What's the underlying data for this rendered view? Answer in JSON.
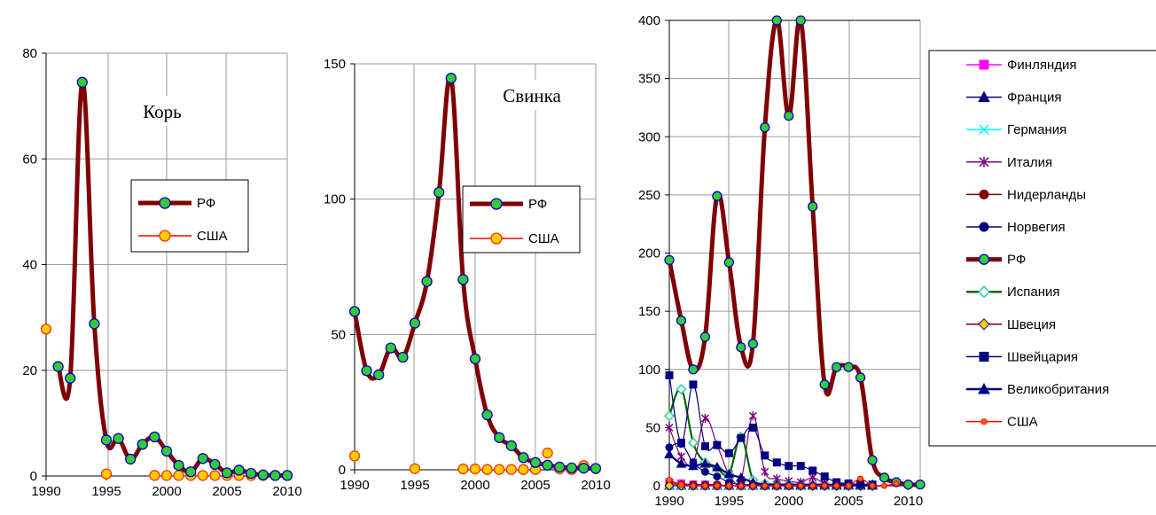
{
  "chart_data": [
    {
      "type": "line",
      "title": "Корь",
      "xlim": [
        1990,
        2010
      ],
      "ylim": [
        0,
        80
      ],
      "xticks": [
        1990,
        1995,
        2000,
        2005,
        2010
      ],
      "yticks": [
        0,
        20,
        40,
        60,
        80
      ],
      "grid": true,
      "legend_position": "center-right",
      "series": [
        {
          "name": "РФ",
          "color": "#800000",
          "marker_color": "#33cc33",
          "x": [
            1991,
            1992,
            1993,
            1994,
            1995,
            1996,
            1997,
            1998,
            1999,
            2000,
            2001,
            2002,
            2003,
            2004,
            2005,
            2006,
            2007,
            2008,
            2009,
            2010
          ],
          "y": [
            20.7,
            18.5,
            74.5,
            28.8,
            6.8,
            7.1,
            3.2,
            6.0,
            7.4,
            4.7,
            2.0,
            0.8,
            3.3,
            2.2,
            0.6,
            1.1,
            0.5,
            0.2,
            0.1,
            0.1
          ]
        },
        {
          "name": "США",
          "color": "#ff0000",
          "marker_color": "#ffcc00",
          "x": [
            1990,
            1995,
            1999,
            2000,
            2001,
            2002,
            2003,
            2004,
            2005,
            2006,
            2007,
            2008,
            2009,
            2010
          ],
          "y": [
            27.8,
            0.4,
            0.1,
            0.1,
            0.1,
            0.1,
            0.1,
            0.1,
            0.1,
            0.1,
            0.1,
            0.1,
            0.1,
            0.1
          ]
        }
      ]
    },
    {
      "type": "line",
      "title": "Свинка",
      "xlim": [
        1990,
        2010
      ],
      "ylim": [
        0,
        150
      ],
      "xticks": [
        1990,
        1995,
        2000,
        2005,
        2010
      ],
      "yticks": [
        0,
        50,
        100,
        150
      ],
      "grid": true,
      "legend_position": "center-right",
      "series": [
        {
          "name": "РФ",
          "color": "#800000",
          "marker_color": "#33cc33",
          "x": [
            1990,
            1991,
            1992,
            1993,
            1994,
            1995,
            1996,
            1997,
            1998,
            1999,
            2000,
            2001,
            2002,
            2003,
            2004,
            2005,
            2006,
            2007,
            2008,
            2009,
            2010
          ],
          "y": [
            58.5,
            36.6,
            35.1,
            45.0,
            41.6,
            54.2,
            69.6,
            102.5,
            144.7,
            70.3,
            41.0,
            20.3,
            11.9,
            8.9,
            4.5,
            2.7,
            1.7,
            1.0,
            0.7,
            0.6,
            0.5
          ]
        },
        {
          "name": "США",
          "color": "#ff0000",
          "marker_color": "#ffcc00",
          "x": [
            1990,
            1995,
            1999,
            2000,
            2001,
            2002,
            2003,
            2004,
            2005,
            2006,
            2007,
            2008,
            2009
          ],
          "y": [
            5.1,
            0.4,
            0.3,
            0.3,
            0.1,
            0.1,
            0.1,
            0.1,
            0.1,
            6.2,
            0.3,
            0.1,
            1.6
          ]
        }
      ]
    },
    {
      "type": "line",
      "title": "",
      "xlim": [
        1990,
        2011
      ],
      "ylim": [
        0,
        400
      ],
      "xticks": [
        1990,
        1995,
        2000,
        2005,
        2010
      ],
      "yticks": [
        0,
        50,
        100,
        150,
        200,
        250,
        300,
        350,
        400
      ],
      "grid": true,
      "legend_position": "right",
      "series": [
        {
          "name": "Финляндия",
          "color": "#ff00ff",
          "marker": "square",
          "x": [
            1990,
            1991,
            1992,
            1993,
            1994,
            1995,
            1996,
            1997,
            1998,
            1999,
            2000,
            2001,
            2002,
            2003,
            2004,
            2005,
            2006,
            2007
          ],
          "y": [
            3,
            2,
            1,
            1,
            0,
            0,
            0,
            0,
            0,
            0,
            0,
            0,
            0,
            0,
            0,
            0,
            0,
            0
          ]
        },
        {
          "name": "Франция",
          "color": "#000080",
          "marker": "triangle",
          "x": [
            1990,
            1991,
            1992,
            1993,
            1994,
            1995,
            1996,
            1997,
            1998,
            1999,
            2000,
            2001,
            2002,
            2003,
            2004,
            2005,
            2006,
            2007
          ],
          "y": [
            0,
            0,
            0,
            0,
            0,
            0,
            0,
            0,
            0,
            0,
            0,
            0,
            0,
            0,
            0,
            0,
            0,
            0
          ]
        },
        {
          "name": "Германия",
          "color": "#00ffff",
          "marker": "x",
          "x": [
            1990,
            1991,
            1992,
            1993,
            1994,
            1995,
            1996,
            1997,
            1998,
            1999,
            2000,
            2001,
            2002,
            2003,
            2004,
            2005,
            2006,
            2007
          ],
          "y": [
            0,
            0,
            0,
            0,
            0,
            0,
            0,
            0,
            0,
            0,
            0,
            0,
            0,
            0,
            0,
            0,
            0,
            0
          ]
        },
        {
          "name": "Италия",
          "color": "#800080",
          "marker": "star",
          "x": [
            1990,
            1991,
            1992,
            1993,
            1994,
            1995,
            1996,
            1997,
            1998,
            1999,
            2000,
            2001,
            2002,
            2003,
            2004,
            2005,
            2006,
            2007
          ],
          "y": [
            50,
            25,
            20,
            58,
            35,
            10,
            5,
            60,
            12,
            6,
            4,
            3,
            7,
            2,
            1,
            1,
            1,
            0
          ]
        },
        {
          "name": "Нидерланды",
          "color": "#800000",
          "marker": "circle",
          "x": [
            1990,
            1991,
            1992,
            1993,
            1994,
            1995,
            1996,
            1997,
            1998,
            1999,
            2000,
            2001,
            2002,
            2003,
            2004,
            2005,
            2006,
            2007
          ],
          "y": [
            2,
            1,
            1,
            1,
            1,
            0,
            0,
            1,
            1,
            0,
            0,
            0,
            0,
            0,
            0,
            0,
            0,
            0
          ]
        },
        {
          "name": "Норвегия",
          "color": "#000080",
          "marker": "circle",
          "x": [
            1990,
            1991,
            1992,
            1993,
            1994,
            1995,
            1996,
            1997,
            1998,
            1999,
            2000,
            2001,
            2002,
            2003,
            2004,
            2005,
            2006,
            2007
          ],
          "y": [
            33,
            36,
            20,
            12,
            8,
            3,
            1,
            1,
            0,
            0,
            0,
            0,
            0,
            0,
            0,
            0,
            0,
            0
          ]
        },
        {
          "name": "РФ",
          "color": "#800000",
          "marker": "circle",
          "x": [
            1990,
            1991,
            1992,
            1993,
            1994,
            1995,
            1996,
            1997,
            1998,
            1999,
            2000,
            2001,
            2002,
            2003,
            2004,
            2005,
            2006,
            2007,
            2008,
            2009,
            2010,
            2011
          ],
          "y": [
            194,
            142,
            100,
            128,
            249,
            192,
            119,
            122,
            308,
            400,
            318,
            400,
            240,
            87,
            102,
            102,
            93,
            22,
            7,
            3,
            1,
            1
          ]
        },
        {
          "name": "Испания",
          "color": "#006600",
          "marker": "diamond-open",
          "x": [
            1990,
            1991,
            1992,
            1993,
            1994,
            1995,
            1996,
            1997,
            1998,
            1999,
            2000,
            2001,
            2002,
            2003,
            2004,
            2005,
            2006,
            2007
          ],
          "y": [
            60,
            83,
            37,
            20,
            15,
            10,
            42,
            5,
            2,
            1,
            1,
            0,
            0,
            0,
            0,
            0,
            0,
            0
          ]
        },
        {
          "name": "Швеция",
          "color": "#800000",
          "marker": "diamond",
          "x": [
            1990,
            1991,
            1992,
            1993,
            1994,
            1995,
            1996,
            1997,
            1998,
            1999,
            2000,
            2001,
            2002,
            2003,
            2004,
            2005,
            2006,
            2007
          ],
          "y": [
            0,
            0,
            0,
            0,
            0,
            0,
            0,
            0,
            0,
            0,
            0,
            0,
            0,
            0,
            0,
            0,
            0,
            0
          ]
        },
        {
          "name": "Швейцария",
          "color": "#000080",
          "marker": "square",
          "x": [
            1990,
            1991,
            1992,
            1993,
            1994,
            1995,
            1996,
            1997,
            1998,
            1999,
            2000,
            2001,
            2002,
            2003,
            2004,
            2005,
            2006,
            2007
          ],
          "y": [
            95,
            37,
            87,
            34,
            35,
            28,
            41,
            50,
            26,
            20,
            17,
            17,
            13,
            8,
            3,
            2,
            1,
            1
          ]
        },
        {
          "name": "Великобритания",
          "color": "#000080",
          "marker": "triangle",
          "x": [
            1990,
            1991,
            1992,
            1993,
            1994,
            1995,
            1996,
            1997,
            1998,
            1999,
            2000,
            2001,
            2002,
            2003,
            2004,
            2005,
            2006,
            2007
          ],
          "y": [
            27,
            19,
            17,
            19,
            16,
            10,
            7,
            3,
            1,
            1,
            1,
            1,
            1,
            1,
            1,
            1,
            1,
            1
          ]
        },
        {
          "name": "США",
          "color": "#ff0000",
          "marker": "small-circle",
          "x": [
            1990,
            1991,
            1992,
            1993,
            1994,
            1995,
            1996,
            1997,
            1998,
            1999,
            2000,
            2001,
            2002,
            2003,
            2004,
            2005,
            2006,
            2007,
            2008,
            2009
          ],
          "y": [
            5,
            1,
            0,
            0,
            0,
            0,
            0,
            0,
            0,
            0,
            0,
            0,
            0,
            0,
            0,
            0,
            6,
            0,
            0,
            2
          ]
        }
      ]
    }
  ]
}
